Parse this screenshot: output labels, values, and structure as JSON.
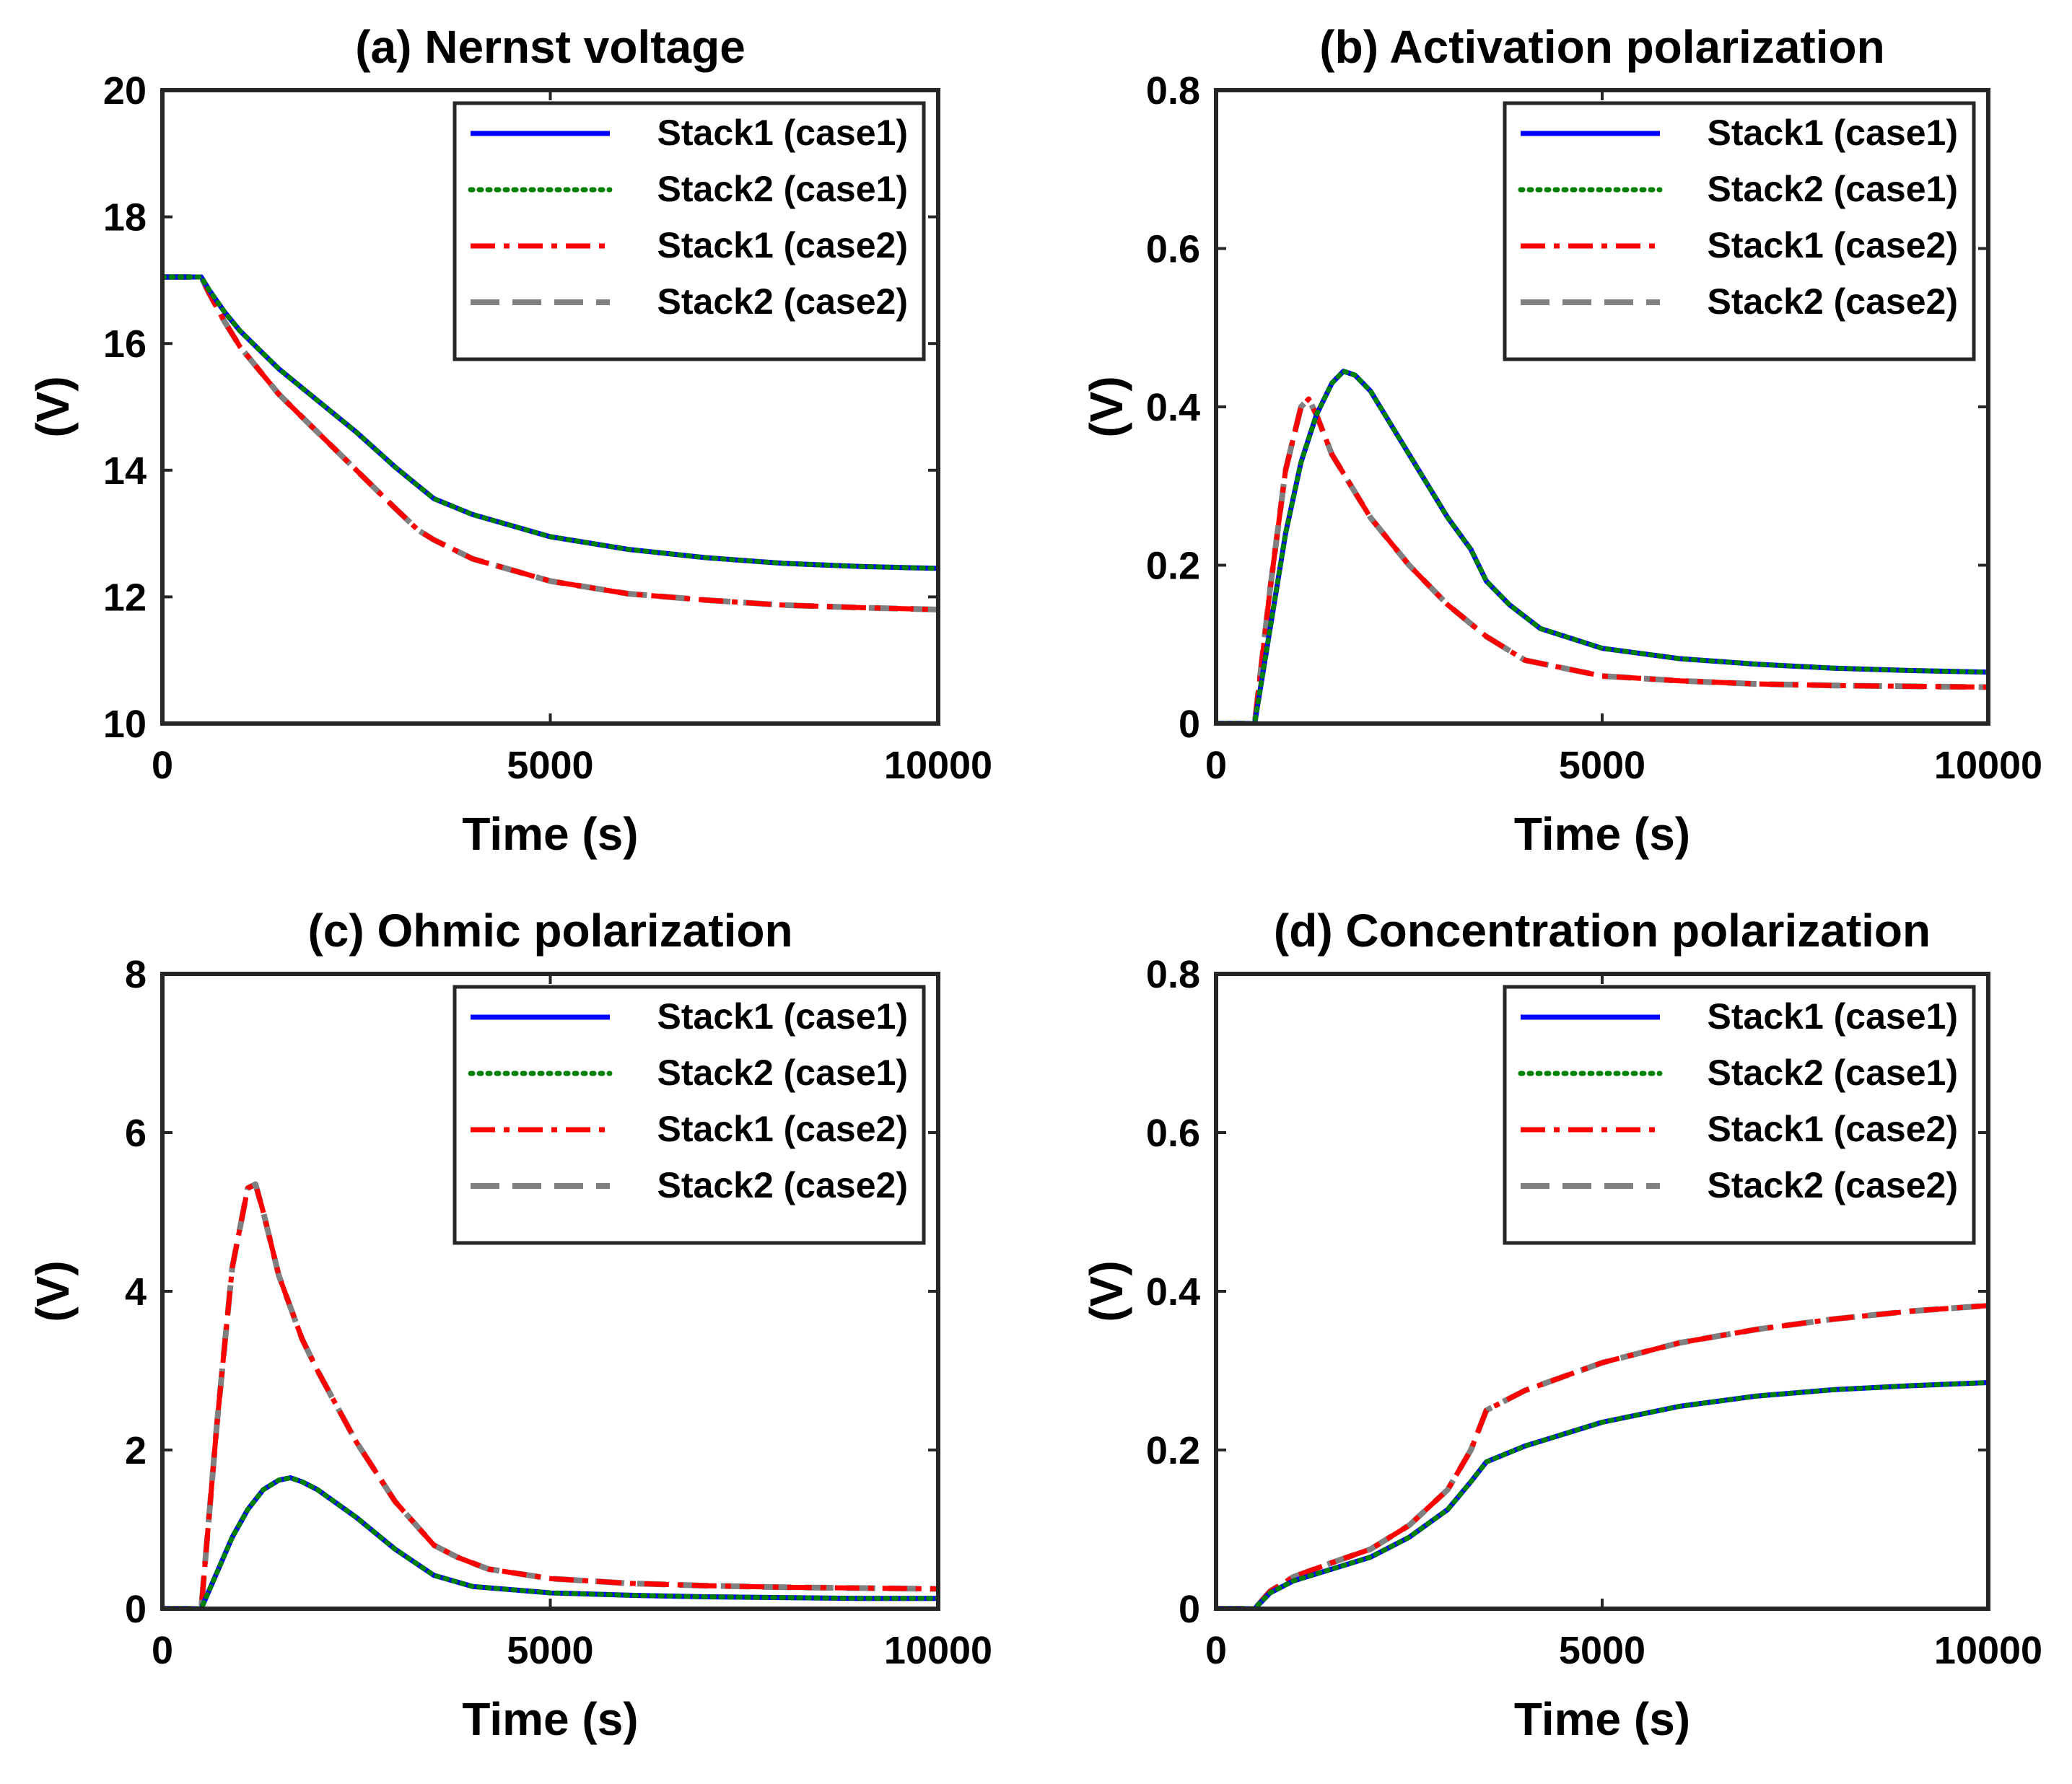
{
  "figure": {
    "line_styles": {
      "Stack1 (case1)": {
        "color": "#0000ff",
        "style": "solid"
      },
      "Stack2 (case1)": {
        "color": "#008000",
        "style": "dotted"
      },
      "Stack1 (case2)": {
        "color": "#ff0000",
        "style": "dashdot"
      },
      "Stack2 (case2)": {
        "color": "#808080",
        "style": "dashed"
      }
    }
  },
  "chart_data": [
    {
      "type": "line",
      "title": "(a) Nernst voltage",
      "xlabel": "Time (s)",
      "ylabel": "(V)",
      "xlim": [
        0,
        10000
      ],
      "ylim": [
        10,
        20
      ],
      "xticks": [
        0,
        5000,
        10000
      ],
      "yticks": [
        10,
        12,
        14,
        16,
        18,
        20
      ],
      "xtick_labels": [
        "0",
        "5000",
        "10000"
      ],
      "ytick_labels": [
        "10",
        "12",
        "14",
        "16",
        "18",
        "20"
      ],
      "grid": false,
      "legend_position": "top-right",
      "series": [
        {
          "name": "Stack1 (case1)",
          "x": [
            0,
            500,
            600,
            800,
            1000,
            1500,
            2000,
            2500,
            3000,
            3300,
            3500,
            4000,
            5000,
            6000,
            7000,
            8000,
            9000,
            10000
          ],
          "values": [
            17.05,
            17.05,
            16.85,
            16.5,
            16.2,
            15.6,
            15.1,
            14.6,
            14.05,
            13.75,
            13.55,
            13.3,
            12.95,
            12.75,
            12.62,
            12.53,
            12.48,
            12.45
          ]
        },
        {
          "name": "Stack2 (case1)",
          "x": [
            0,
            500,
            600,
            800,
            1000,
            1500,
            2000,
            2500,
            3000,
            3300,
            3500,
            4000,
            5000,
            6000,
            7000,
            8000,
            9000,
            10000
          ],
          "values": [
            17.05,
            17.05,
            16.85,
            16.5,
            16.2,
            15.6,
            15.1,
            14.6,
            14.05,
            13.75,
            13.55,
            13.3,
            12.95,
            12.75,
            12.62,
            12.53,
            12.48,
            12.45
          ]
        },
        {
          "name": "Stack1 (case2)",
          "x": [
            0,
            500,
            600,
            800,
            1000,
            1500,
            2000,
            2500,
            3000,
            3300,
            3500,
            4000,
            5000,
            6000,
            7000,
            8000,
            9000,
            10000
          ],
          "values": [
            17.05,
            17.05,
            16.8,
            16.35,
            15.95,
            15.2,
            14.6,
            14.0,
            13.4,
            13.05,
            12.9,
            12.6,
            12.25,
            12.05,
            11.95,
            11.87,
            11.83,
            11.8
          ]
        },
        {
          "name": "Stack2 (case2)",
          "x": [
            0,
            500,
            600,
            800,
            1000,
            1500,
            2000,
            2500,
            3000,
            3300,
            3500,
            4000,
            5000,
            6000,
            7000,
            8000,
            9000,
            10000
          ],
          "values": [
            17.05,
            17.05,
            16.8,
            16.35,
            15.95,
            15.2,
            14.6,
            14.0,
            13.4,
            13.05,
            12.9,
            12.6,
            12.25,
            12.05,
            11.95,
            11.87,
            11.83,
            11.8
          ]
        }
      ]
    },
    {
      "type": "line",
      "title": "(b) Activation polarization",
      "xlabel": "Time (s)",
      "ylabel": "(V)",
      "xlim": [
        0,
        10000
      ],
      "ylim": [
        0,
        0.8
      ],
      "xticks": [
        0,
        5000,
        10000
      ],
      "yticks": [
        0,
        0.2,
        0.4,
        0.6,
        0.8
      ],
      "xtick_labels": [
        "0",
        "5000",
        "10000"
      ],
      "ytick_labels": [
        "0",
        "0.2",
        "0.4",
        "0.6",
        "0.8"
      ],
      "grid": false,
      "legend_position": "top-right",
      "series": [
        {
          "name": "Stack1 (case1)",
          "x": [
            0,
            500,
            700,
            900,
            1100,
            1300,
            1500,
            1650,
            1800,
            2000,
            2500,
            3000,
            3300,
            3500,
            3800,
            4200,
            5000,
            6000,
            7000,
            8000,
            9000,
            10000
          ],
          "values": [
            0,
            0,
            0.12,
            0.24,
            0.33,
            0.39,
            0.43,
            0.445,
            0.44,
            0.42,
            0.34,
            0.26,
            0.22,
            0.18,
            0.15,
            0.12,
            0.095,
            0.082,
            0.075,
            0.07,
            0.067,
            0.065
          ]
        },
        {
          "name": "Stack2 (case1)",
          "x": [
            0,
            500,
            700,
            900,
            1100,
            1300,
            1500,
            1650,
            1800,
            2000,
            2500,
            3000,
            3300,
            3500,
            3800,
            4200,
            5000,
            6000,
            7000,
            8000,
            9000,
            10000
          ],
          "values": [
            0,
            0,
            0.12,
            0.24,
            0.33,
            0.39,
            0.43,
            0.445,
            0.44,
            0.42,
            0.34,
            0.26,
            0.22,
            0.18,
            0.15,
            0.12,
            0.095,
            0.082,
            0.075,
            0.07,
            0.067,
            0.065
          ]
        },
        {
          "name": "Stack1 (case2)",
          "x": [
            0,
            500,
            700,
            900,
            1100,
            1200,
            1300,
            1500,
            2000,
            2500,
            3000,
            3500,
            4000,
            5000,
            6000,
            7000,
            8000,
            9000,
            10000
          ],
          "values": [
            0,
            0,
            0.17,
            0.32,
            0.4,
            0.41,
            0.39,
            0.34,
            0.26,
            0.2,
            0.15,
            0.11,
            0.08,
            0.06,
            0.054,
            0.05,
            0.048,
            0.047,
            0.046
          ]
        },
        {
          "name": "Stack2 (case2)",
          "x": [
            0,
            500,
            700,
            900,
            1100,
            1200,
            1300,
            1500,
            2000,
            2500,
            3000,
            3500,
            4000,
            5000,
            6000,
            7000,
            8000,
            9000,
            10000
          ],
          "values": [
            0,
            0,
            0.17,
            0.32,
            0.4,
            0.41,
            0.39,
            0.34,
            0.26,
            0.2,
            0.15,
            0.11,
            0.08,
            0.06,
            0.054,
            0.05,
            0.048,
            0.047,
            0.046
          ]
        }
      ]
    },
    {
      "type": "line",
      "title": "(c) Ohmic polarization",
      "xlabel": "Time (s)",
      "ylabel": "(V)",
      "xlim": [
        0,
        10000
      ],
      "ylim": [
        0,
        8
      ],
      "xticks": [
        0,
        5000,
        10000
      ],
      "yticks": [
        0,
        2,
        4,
        6,
        8
      ],
      "xtick_labels": [
        "0",
        "5000",
        "10000"
      ],
      "ytick_labels": [
        "0",
        "2",
        "4",
        "6",
        "8"
      ],
      "grid": false,
      "legend_position": "top-right",
      "series": [
        {
          "name": "Stack1 (case1)",
          "x": [
            0,
            500,
            700,
            900,
            1100,
            1300,
            1500,
            1650,
            1800,
            2000,
            2500,
            3000,
            3500,
            4000,
            5000,
            6000,
            7000,
            8000,
            9000,
            10000
          ],
          "values": [
            0,
            0,
            0.45,
            0.9,
            1.25,
            1.5,
            1.62,
            1.65,
            1.6,
            1.5,
            1.15,
            0.75,
            0.42,
            0.28,
            0.2,
            0.17,
            0.15,
            0.14,
            0.13,
            0.13
          ]
        },
        {
          "name": "Stack2 (case1)",
          "x": [
            0,
            500,
            700,
            900,
            1100,
            1300,
            1500,
            1650,
            1800,
            2000,
            2500,
            3000,
            3500,
            4000,
            5000,
            6000,
            7000,
            8000,
            9000,
            10000
          ],
          "values": [
            0,
            0,
            0.45,
            0.9,
            1.25,
            1.5,
            1.62,
            1.65,
            1.6,
            1.5,
            1.15,
            0.75,
            0.42,
            0.28,
            0.2,
            0.17,
            0.15,
            0.14,
            0.13,
            0.13
          ]
        },
        {
          "name": "Stack1 (case2)",
          "x": [
            0,
            500,
            700,
            900,
            1100,
            1200,
            1300,
            1500,
            1800,
            2000,
            2500,
            3000,
            3500,
            3800,
            4200,
            5000,
            6000,
            7000,
            8000,
            9000,
            10000
          ],
          "values": [
            0,
            0,
            2.3,
            4.3,
            5.3,
            5.35,
            5.0,
            4.2,
            3.4,
            3.0,
            2.1,
            1.35,
            0.8,
            0.65,
            0.5,
            0.38,
            0.32,
            0.29,
            0.27,
            0.26,
            0.25
          ]
        },
        {
          "name": "Stack2 (case2)",
          "x": [
            0,
            500,
            700,
            900,
            1100,
            1200,
            1300,
            1500,
            1800,
            2000,
            2500,
            3000,
            3500,
            3800,
            4200,
            5000,
            6000,
            7000,
            8000,
            9000,
            10000
          ],
          "values": [
            0,
            0,
            2.3,
            4.3,
            5.3,
            5.35,
            5.0,
            4.2,
            3.4,
            3.0,
            2.1,
            1.35,
            0.8,
            0.65,
            0.5,
            0.38,
            0.32,
            0.29,
            0.27,
            0.26,
            0.25
          ]
        }
      ]
    },
    {
      "type": "line",
      "title": "(d) Concentration polarization",
      "xlabel": "Time (s)",
      "ylabel": "(V)",
      "xlim": [
        0,
        10000
      ],
      "ylim": [
        0,
        0.8
      ],
      "xticks": [
        0,
        5000,
        10000
      ],
      "yticks": [
        0,
        0.2,
        0.4,
        0.6,
        0.8
      ],
      "xtick_labels": [
        "0",
        "5000",
        "10000"
      ],
      "ytick_labels": [
        "0",
        "0.2",
        "0.4",
        "0.6",
        "0.8"
      ],
      "grid": false,
      "legend_position": "top-right",
      "series": [
        {
          "name": "Stack1 (case1)",
          "x": [
            0,
            500,
            700,
            1000,
            1500,
            2000,
            2500,
            3000,
            3300,
            3500,
            4000,
            5000,
            6000,
            7000,
            8000,
            9000,
            10000
          ],
          "values": [
            0,
            0,
            0.02,
            0.035,
            0.05,
            0.065,
            0.09,
            0.125,
            0.16,
            0.185,
            0.205,
            0.235,
            0.255,
            0.268,
            0.276,
            0.281,
            0.285
          ]
        },
        {
          "name": "Stack2 (case1)",
          "x": [
            0,
            500,
            700,
            1000,
            1500,
            2000,
            2500,
            3000,
            3300,
            3500,
            4000,
            5000,
            6000,
            7000,
            8000,
            9000,
            10000
          ],
          "values": [
            0,
            0,
            0.02,
            0.035,
            0.05,
            0.065,
            0.09,
            0.125,
            0.16,
            0.185,
            0.205,
            0.235,
            0.255,
            0.268,
            0.276,
            0.281,
            0.285
          ]
        },
        {
          "name": "Stack1 (case2)",
          "x": [
            0,
            500,
            700,
            1000,
            1500,
            2000,
            2500,
            3000,
            3300,
            3500,
            4000,
            5000,
            6000,
            7000,
            8000,
            9000,
            10000
          ],
          "values": [
            0,
            0,
            0.022,
            0.04,
            0.058,
            0.075,
            0.105,
            0.15,
            0.2,
            0.25,
            0.275,
            0.31,
            0.335,
            0.352,
            0.365,
            0.375,
            0.382
          ]
        },
        {
          "name": "Stack2 (case2)",
          "x": [
            0,
            500,
            700,
            1000,
            1500,
            2000,
            2500,
            3000,
            3300,
            3500,
            4000,
            5000,
            6000,
            7000,
            8000,
            9000,
            10000
          ],
          "values": [
            0,
            0,
            0.022,
            0.04,
            0.058,
            0.075,
            0.105,
            0.15,
            0.2,
            0.25,
            0.275,
            0.31,
            0.335,
            0.352,
            0.365,
            0.375,
            0.382
          ]
        }
      ]
    }
  ]
}
